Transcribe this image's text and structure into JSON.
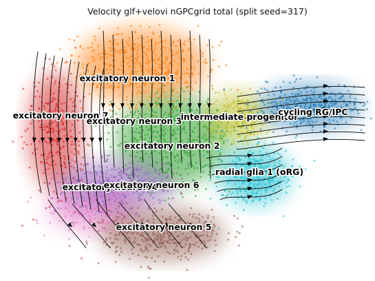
{
  "chart_data": {
    "type": "scatter",
    "title": "Velocity glf+velovi nGPCgrid total (split seed=317)",
    "xlabel": "",
    "ylabel": "",
    "grid": false,
    "legend": "on data",
    "clusters": [
      {
        "name": "excitatory neuron 1",
        "color": "#ff7f0e"
      },
      {
        "name": "excitatory neuron 7",
        "color": "#d62728"
      },
      {
        "name": "excitatory neuron 3",
        "color": "#e377c2"
      },
      {
        "name": "excitatory neuron 2",
        "color": "#2ca02c"
      },
      {
        "name": "intermediate progenitor",
        "color": "#bcbd22"
      },
      {
        "name": "cycling RG/IPC",
        "color": "#1f77b4"
      },
      {
        "name": "radial glia 1 (oRG)",
        "color": "#17becf"
      },
      {
        "name": "excitatory neuron 4",
        "color": "#9467bd"
      },
      {
        "name": "excitatory neuron 6",
        "color": "#9467bd"
      },
      {
        "name": "excitatory neuron 5",
        "color": "#8c564b"
      }
    ],
    "labels": [
      {
        "text": "excitatory neuron 1"
      },
      {
        "text": "excitatory neuron 7"
      },
      {
        "text": "excitatory neuron 3"
      },
      {
        "text": "intermediate progenitor"
      },
      {
        "text": "cycling RG/IPC"
      },
      {
        "text": "excitatory neuron 2"
      },
      {
        "text": "radial glia 1 (oRG)"
      },
      {
        "text": "excitatory neuron 4"
      },
      {
        "text": "excitatory neuron 6"
      },
      {
        "text": "excitatory neuron 5"
      }
    ]
  }
}
